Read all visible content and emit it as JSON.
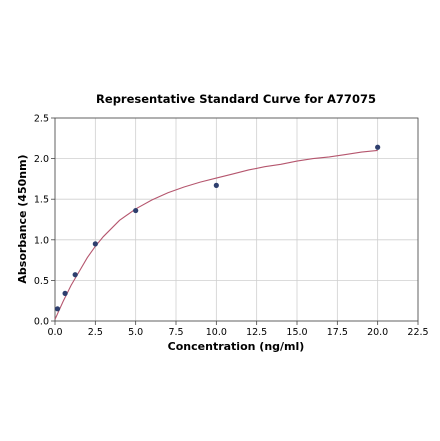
{
  "chart_data": {
    "type": "scatter",
    "title": "Representative Standard Curve for A77075",
    "xlabel": "Concentration (ng/ml)",
    "ylabel": "Absorbance (450nm)",
    "xlim": [
      0,
      22.5
    ],
    "ylim": [
      0,
      2.5
    ],
    "xticks": [
      0,
      2.5,
      5,
      7.5,
      10,
      12.5,
      15,
      17.5,
      20,
      22.5
    ],
    "xtick_labels": [
      "0.0",
      "2.5",
      "5.0",
      "7.5",
      "10.0",
      "12.5",
      "15.0",
      "17.5",
      "20.0",
      "22.5"
    ],
    "yticks": [
      0,
      0.5,
      1,
      1.5,
      2,
      2.5
    ],
    "ytick_labels": [
      "0.0",
      "0.5",
      "1.0",
      "1.5",
      "2.0",
      "2.5"
    ],
    "grid": true,
    "points": {
      "x": [
        0.156,
        0.625,
        1.25,
        2.5,
        5.0,
        10.0,
        20.0
      ],
      "y": [
        0.15,
        0.34,
        0.57,
        0.95,
        1.36,
        1.67,
        2.14
      ]
    },
    "fit_curve": {
      "x": [
        0,
        0.25,
        0.5,
        0.75,
        1,
        1.5,
        2,
        2.5,
        3,
        4,
        5,
        6,
        7,
        8,
        9,
        10,
        11,
        12,
        13,
        14,
        15,
        16,
        17,
        18,
        19,
        20
      ],
      "y": [
        0.02,
        0.13,
        0.24,
        0.34,
        0.44,
        0.61,
        0.78,
        0.92,
        1.04,
        1.24,
        1.38,
        1.49,
        1.58,
        1.65,
        1.71,
        1.76,
        1.81,
        1.86,
        1.9,
        1.93,
        1.97,
        2.0,
        2.02,
        2.05,
        2.08,
        2.1
      ]
    },
    "colors": {
      "points": "#2e3f6e",
      "curve": "#b5566e"
    }
  }
}
